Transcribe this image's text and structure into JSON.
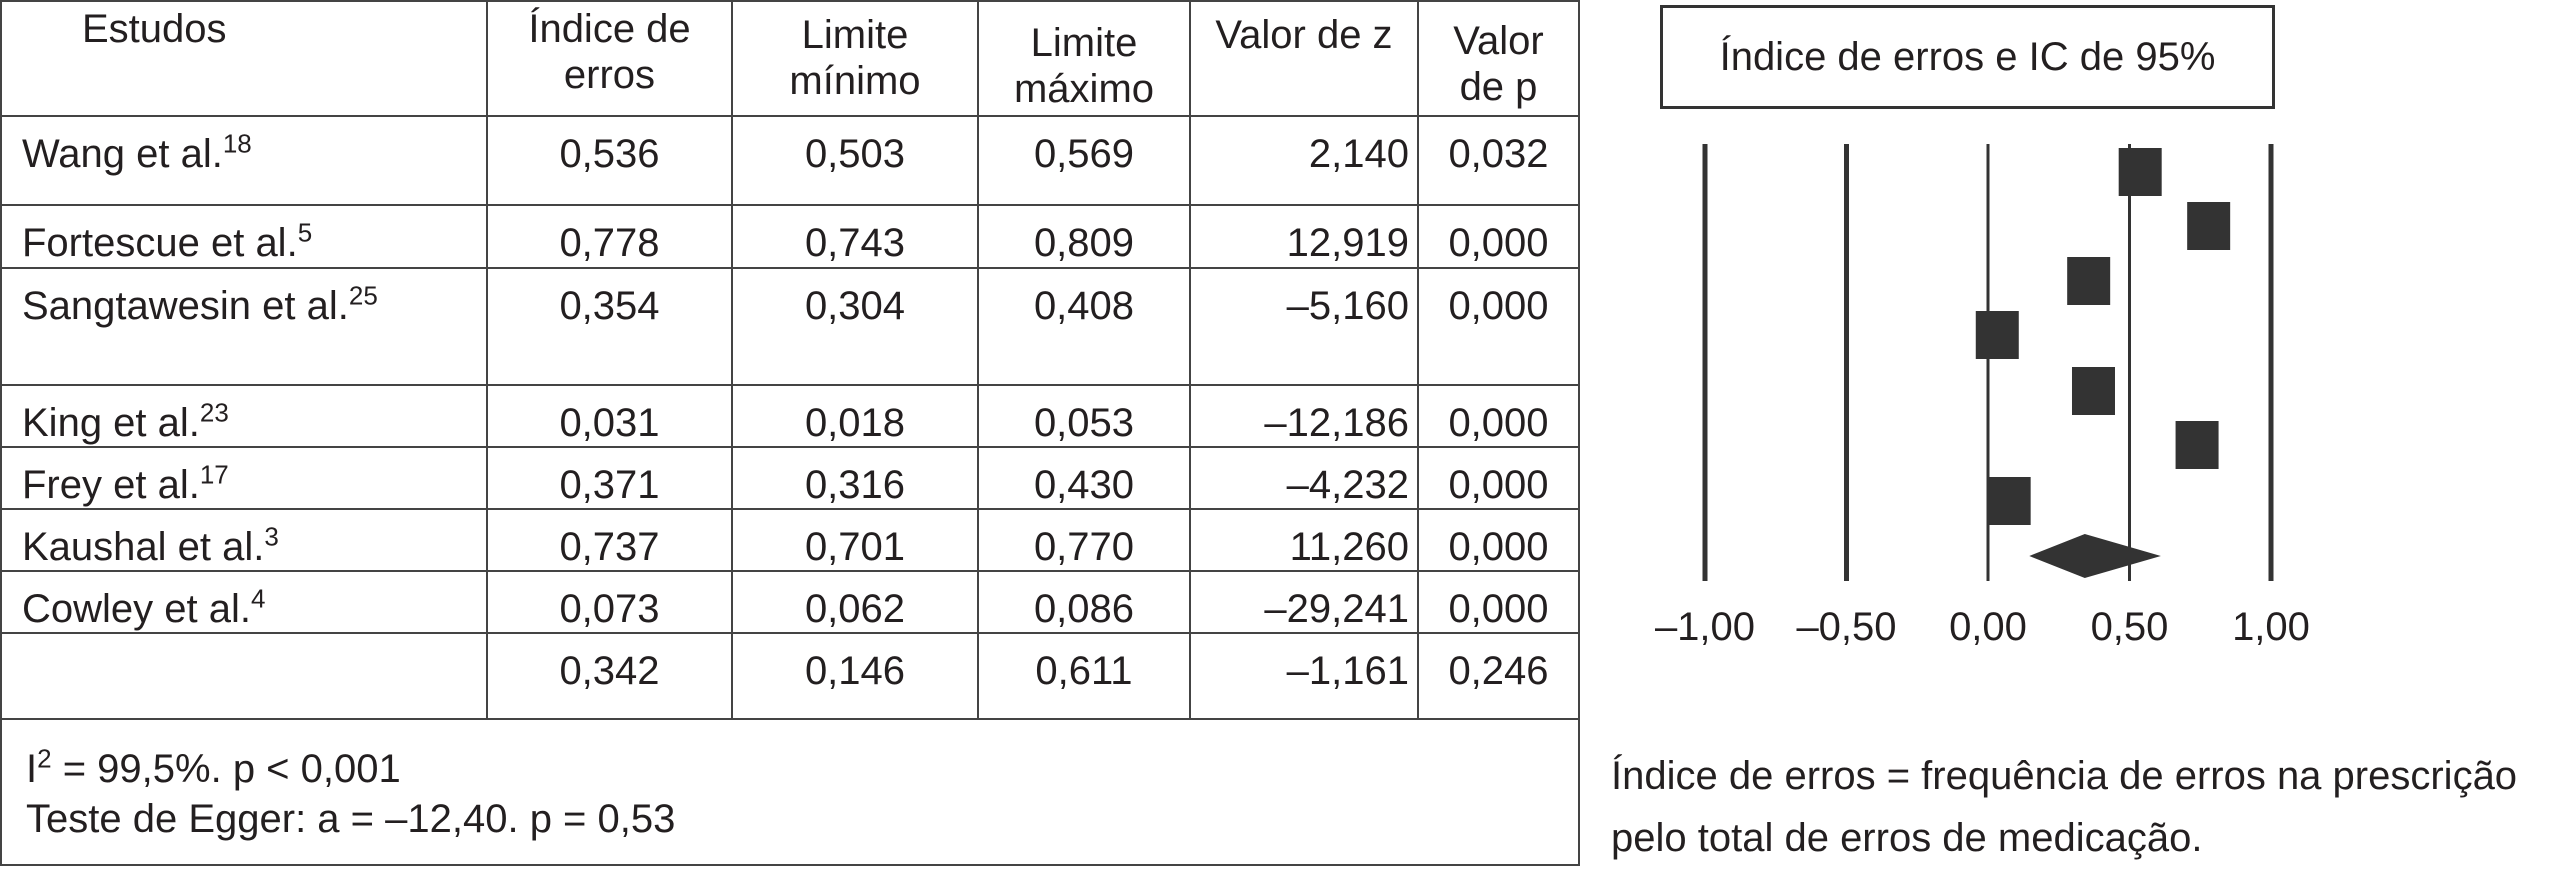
{
  "table": {
    "headers": [
      "Estudos",
      "Índice de erros",
      "Limite mínimo",
      "Limite máximo",
      "Valor de z",
      "Valor de p"
    ],
    "rows": [
      {
        "study": "Wang et al.",
        "ref": "18",
        "index": "0,536",
        "lower": "0,503",
        "upper": "0,569",
        "z": "2,140",
        "p": "0,032"
      },
      {
        "study": "Fortescue et al.",
        "ref": "5",
        "index": "0,778",
        "lower": "0,743",
        "upper": "0,809",
        "z": "12,919",
        "p": "0,000"
      },
      {
        "study": "Sangtawesin et al.",
        "ref": "25",
        "index": "0,354",
        "lower": "0,304",
        "upper": "0,408",
        "z": "–5,160",
        "p": "0,000"
      },
      {
        "study": "King et al.",
        "ref": "23",
        "index": "0,031",
        "lower": "0,018",
        "upper": "0,053",
        "z": "–12,186",
        "p": "0,000"
      },
      {
        "study": "Frey et al.",
        "ref": "17",
        "index": "0,371",
        "lower": "0,316",
        "upper": "0,430",
        "z": "–4,232",
        "p": "0,000"
      },
      {
        "study": "Kaushal et al.",
        "ref": "3",
        "index": "0,737",
        "lower": "0,701",
        "upper": "0,770",
        "z": "11,260",
        "p": "0,000"
      },
      {
        "study": "Cowley et al.",
        "ref": "4",
        "index": "0,073",
        "lower": "0,062",
        "upper": "0,086",
        "z": "–29,241",
        "p": "0,000"
      }
    ],
    "summary": {
      "study": "",
      "index": "0,342",
      "lower": "0,146",
      "upper": "0,611",
      "z": "–1,161",
      "p": "0,246"
    },
    "heterogeneity_prefix": "I",
    "heterogeneity_sup": "2",
    "heterogeneity": " = 99,5%. p < 0,001",
    "egger": "Teste de Egger: a = –12,40. p = 0,53"
  },
  "chart_data": {
    "type": "forest",
    "title": "Índice de erros e IC de 95%",
    "xlim": [
      -1.0,
      1.0
    ],
    "xticks": [
      "–1,00",
      "–0,50",
      "0,00",
      "0,50",
      "1,00"
    ],
    "xtick_values": [
      -1.0,
      -0.5,
      0.0,
      0.5,
      1.0
    ],
    "points": [
      0.536,
      0.778,
      0.354,
      0.031,
      0.371,
      0.737,
      0.073
    ],
    "summary": {
      "estimate": 0.342,
      "lower": 0.146,
      "upper": 0.611
    },
    "marker_color": "#333333"
  },
  "footnote": "Índice de erros = frequência de erros na prescrição pelo total de erros de medicação."
}
